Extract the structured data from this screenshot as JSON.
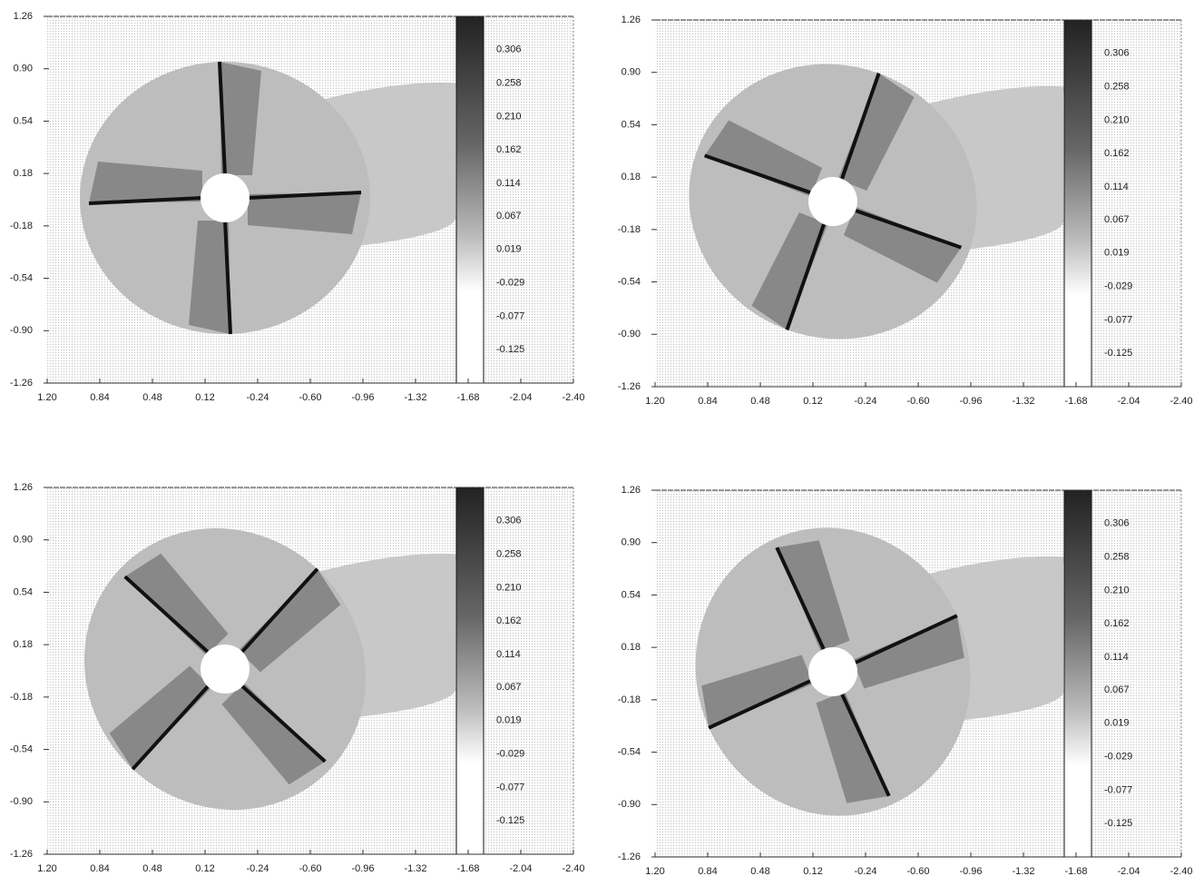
{
  "chart_data": [
    {
      "type": "contour",
      "xlim": [
        1.2,
        -2.4
      ],
      "ylim": [
        -1.26,
        1.26
      ],
      "xticks": [
        {
          "value": 1.2,
          "label": "1.20"
        },
        0.84,
        0.48,
        0.12,
        -0.24,
        {
          "value": -0.6,
          "label": "-0.60"
        },
        -0.96,
        -1.32,
        -1.68,
        -2.04,
        {
          "value": -2.4,
          "label": "-2.40"
        }
      ],
      "yticks": [
        1.26,
        {
          "value": 0.9,
          "label": "0.90"
        },
        0.54,
        0.18,
        -0.18,
        -0.54,
        {
          "value": -0.9,
          "label": "-0.90"
        },
        -1.26
      ],
      "colorbar": {
        "clim": [
          -0.173,
          0.354
        ],
        "ticks": [
          0.306,
          0.258,
          {
            "value": 0.21,
            "label": "0.210"
          },
          0.162,
          0.114,
          0.067,
          0.019,
          -0.029,
          -0.077,
          -0.125
        ]
      }
    },
    {
      "type": "contour",
      "xlim": [
        1.2,
        -2.4
      ],
      "ylim": [
        -1.26,
        1.26
      ],
      "xticks": [
        {
          "value": 1.2,
          "label": "1.20"
        },
        0.84,
        0.48,
        0.12,
        -0.24,
        {
          "value": -0.6,
          "label": "-0.60"
        },
        -0.96,
        -1.32,
        -1.68,
        -2.04,
        {
          "value": -2.4,
          "label": "-2.40"
        }
      ],
      "yticks": [
        1.26,
        {
          "value": 0.9,
          "label": "0.90"
        },
        0.54,
        0.18,
        -0.18,
        -0.54,
        {
          "value": -0.9,
          "label": "-0.90"
        },
        -1.26
      ],
      "colorbar": {
        "clim": [
          -0.173,
          0.354
        ],
        "ticks": [
          0.306,
          0.258,
          {
            "value": 0.21,
            "label": "0.210"
          },
          0.162,
          0.114,
          0.067,
          0.019,
          -0.029,
          -0.077,
          -0.125
        ]
      }
    },
    {
      "type": "contour",
      "xlim": [
        1.2,
        -2.4
      ],
      "ylim": [
        -1.26,
        1.26
      ],
      "xticks": [
        {
          "value": 1.2,
          "label": "1.20"
        },
        0.84,
        0.48,
        0.12,
        -0.24,
        {
          "value": -0.6,
          "label": "-0.60"
        },
        -0.96,
        -1.32,
        -1.68,
        -2.04,
        {
          "value": -2.4,
          "label": "-2.40"
        }
      ],
      "yticks": [
        1.26,
        {
          "value": 0.9,
          "label": "0.90"
        },
        0.54,
        0.18,
        -0.18,
        -0.54,
        {
          "value": -0.9,
          "label": "-0.90"
        },
        -1.26
      ],
      "colorbar": {
        "clim": [
          -0.173,
          0.354
        ],
        "ticks": [
          0.306,
          0.258,
          {
            "value": 0.21,
            "label": "0.210"
          },
          0.162,
          0.114,
          0.067,
          0.019,
          -0.029,
          -0.077,
          -0.125
        ]
      }
    },
    {
      "type": "contour",
      "xlim": [
        1.2,
        -2.4
      ],
      "ylim": [
        -1.26,
        1.26
      ],
      "xticks": [
        {
          "value": 1.2,
          "label": "1.20"
        },
        0.84,
        0.48,
        0.12,
        -0.24,
        {
          "value": -0.6,
          "label": "-0.60"
        },
        -0.96,
        -1.32,
        -1.68,
        -2.04,
        {
          "value": -2.4,
          "label": "-2.40"
        }
      ],
      "yticks": [
        1.26,
        {
          "value": 0.9,
          "label": "0.90"
        },
        0.54,
        0.18,
        -0.18,
        -0.54,
        {
          "value": -0.9,
          "label": "-0.90"
        },
        -1.26
      ],
      "colorbar": {
        "clim": [
          -0.173,
          0.354
        ],
        "ticks": [
          0.306,
          0.258,
          {
            "value": 0.21,
            "label": "0.210"
          },
          0.162,
          0.114,
          0.067,
          0.019,
          -0.029,
          -0.077,
          -0.125
        ]
      }
    }
  ]
}
